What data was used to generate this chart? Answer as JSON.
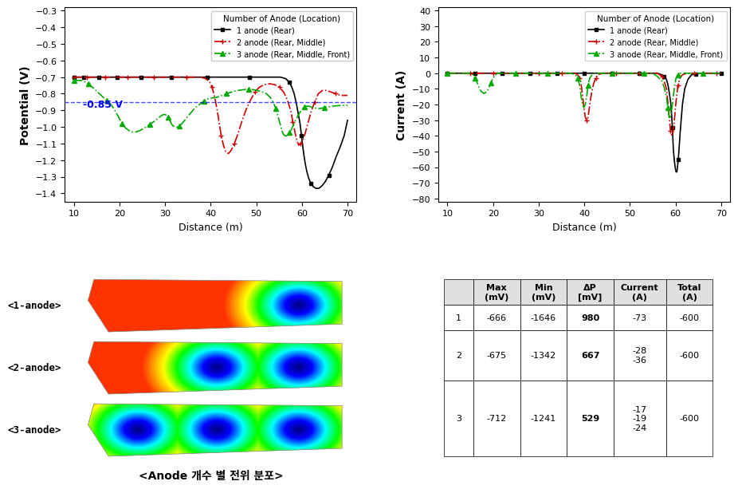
{
  "pot_title": "Potential (V)",
  "cur_title": "Current (A)",
  "xlabel": "Distance (m)",
  "legend_title": "Number of Anode (Location)",
  "legend_entries": [
    "1 anode (Rear)",
    "2 anode (Rear, Middle)",
    "3 anode (Rear, Middle, Front)"
  ],
  "line_colors": [
    "#000000",
    "#cc0000",
    "#00aa00"
  ],
  "pot_ylim": [
    -1.45,
    -0.28
  ],
  "pot_yticks": [
    -1.4,
    -1.3,
    -1.2,
    -1.1,
    -1.0,
    -0.9,
    -0.8,
    -0.7,
    -0.6,
    -0.5,
    -0.4,
    -0.3
  ],
  "cur_ylim": [
    -82,
    42
  ],
  "cur_yticks": [
    -80,
    -70,
    -60,
    -50,
    -40,
    -30,
    -20,
    -10,
    0,
    10,
    20,
    30,
    40
  ],
  "xlim": [
    8,
    72
  ],
  "xticks": [
    10,
    20,
    30,
    40,
    50,
    60,
    70
  ],
  "ref_line": -0.85,
  "ref_label": "-0.85 V",
  "table_headers": [
    "",
    "Max\n(mV)",
    "Min\n(mV)",
    "ΔP\n[mV]",
    "Current\n(A)",
    "Total\n(A)"
  ],
  "table_rows": [
    [
      "1",
      "-666",
      "-1646",
      "980",
      "-73",
      "-600"
    ],
    [
      "2",
      "-675",
      "-1342",
      "667",
      "-28\n-36",
      "-600"
    ],
    [
      "3",
      "-712",
      "-1241",
      "529",
      "-17\n-19\n-24",
      "-600"
    ]
  ],
  "anode_labels": [
    "<1-anode>",
    "<2-anode>",
    "<3-anode>"
  ],
  "bottom_label": "<Anode 개수 별 전위 분포>",
  "pot_1": [
    10.0,
    10.3,
    10.6,
    11.0,
    11.4,
    11.8,
    12.2,
    12.7,
    13.2,
    13.7,
    14.2,
    14.8,
    15.4,
    16.0,
    16.6,
    17.3,
    18.0,
    18.7,
    19.5,
    20.3,
    21.1,
    22.0,
    22.9,
    23.8,
    24.8,
    25.8,
    26.8,
    27.9,
    29.0,
    30.1,
    31.3,
    32.5,
    33.8,
    35.1,
    36.4,
    37.8,
    39.2,
    40.7,
    42.2,
    43.7,
    45.3,
    46.9,
    48.5,
    50.2,
    51.9,
    53.6,
    55.3,
    56.5,
    57.2,
    57.8,
    58.3,
    58.8,
    59.2,
    59.6,
    59.9,
    60.2,
    60.5,
    60.8,
    61.1,
    61.5,
    62.0,
    62.5,
    63.1,
    63.7,
    64.4,
    65.1,
    65.9,
    66.7,
    67.5,
    68.4,
    69.3,
    70.0
  ],
  "pot_1_y": [
    -0.7,
    -0.7,
    -0.7,
    -0.7,
    -0.7,
    -0.7,
    -0.7,
    -0.7,
    -0.7,
    -0.7,
    -0.7,
    -0.7,
    -0.7,
    -0.7,
    -0.7,
    -0.7,
    -0.7,
    -0.7,
    -0.7,
    -0.7,
    -0.7,
    -0.7,
    -0.7,
    -0.7,
    -0.7,
    -0.7,
    -0.7,
    -0.7,
    -0.7,
    -0.7,
    -0.7,
    -0.7,
    -0.7,
    -0.7,
    -0.7,
    -0.7,
    -0.7,
    -0.7,
    -0.7,
    -0.7,
    -0.7,
    -0.7,
    -0.7,
    -0.7,
    -0.7,
    -0.7,
    -0.7,
    -0.71,
    -0.73,
    -0.76,
    -0.8,
    -0.86,
    -0.92,
    -0.98,
    -1.05,
    -1.12,
    -1.18,
    -1.23,
    -1.27,
    -1.31,
    -1.34,
    -1.36,
    -1.37,
    -1.37,
    -1.355,
    -1.33,
    -1.29,
    -1.24,
    -1.18,
    -1.12,
    -1.05,
    -0.96
  ],
  "pot_2": [
    10.0,
    10.5,
    11.0,
    11.6,
    12.2,
    12.9,
    13.6,
    14.3,
    15.1,
    15.9,
    16.8,
    17.7,
    18.6,
    19.6,
    20.6,
    21.7,
    22.8,
    23.9,
    25.1,
    26.3,
    27.6,
    28.9,
    30.3,
    31.7,
    33.2,
    34.7,
    36.2,
    37.8,
    39.0,
    39.8,
    40.3,
    40.7,
    41.1,
    41.5,
    41.9,
    42.3,
    42.8,
    43.3,
    43.9,
    44.5,
    45.2,
    46.0,
    46.8,
    47.7,
    48.7,
    49.7,
    50.7,
    51.8,
    52.9,
    54.0,
    55.1,
    56.0,
    56.7,
    57.2,
    57.7,
    58.0,
    58.4,
    58.7,
    59.0,
    59.3,
    59.7,
    60.2,
    60.7,
    61.3,
    62.0,
    62.8,
    63.6,
    64.5,
    65.4,
    66.4,
    67.4,
    68.5,
    69.5,
    70.0
  ],
  "pot_2_y": [
    -0.7,
    -0.7,
    -0.7,
    -0.7,
    -0.7,
    -0.7,
    -0.7,
    -0.7,
    -0.7,
    -0.7,
    -0.7,
    -0.7,
    -0.7,
    -0.7,
    -0.7,
    -0.7,
    -0.7,
    -0.7,
    -0.7,
    -0.7,
    -0.7,
    -0.7,
    -0.7,
    -0.7,
    -0.7,
    -0.7,
    -0.7,
    -0.7,
    -0.71,
    -0.73,
    -0.76,
    -0.8,
    -0.85,
    -0.91,
    -0.98,
    -1.05,
    -1.11,
    -1.15,
    -1.16,
    -1.14,
    -1.1,
    -1.04,
    -0.97,
    -0.9,
    -0.84,
    -0.79,
    -0.76,
    -0.745,
    -0.74,
    -0.745,
    -0.76,
    -0.79,
    -0.83,
    -0.87,
    -0.92,
    -0.97,
    -1.02,
    -1.06,
    -1.09,
    -1.11,
    -1.1,
    -1.08,
    -1.04,
    -0.98,
    -0.91,
    -0.85,
    -0.8,
    -0.78,
    -0.78,
    -0.79,
    -0.8,
    -0.81,
    -0.81,
    -0.81
  ],
  "pot_3": [
    10.0,
    10.3,
    10.7,
    11.1,
    11.6,
    12.1,
    12.6,
    13.2,
    13.8,
    14.5,
    15.2,
    16.0,
    16.8,
    17.0,
    17.3,
    17.6,
    18.0,
    18.4,
    18.9,
    19.4,
    20.0,
    20.6,
    21.3,
    22.0,
    22.8,
    23.7,
    24.6,
    25.6,
    26.6,
    27.7,
    28.8,
    29.3,
    29.7,
    30.0,
    30.3,
    30.6,
    30.9,
    31.2,
    31.5,
    31.8,
    32.2,
    32.6,
    33.1,
    33.7,
    34.3,
    35.0,
    35.8,
    36.6,
    37.5,
    38.5,
    39.5,
    40.5,
    41.5,
    42.0,
    42.5,
    43.0,
    43.5,
    44.0,
    44.6,
    45.2,
    45.9,
    46.6,
    47.4,
    48.3,
    49.2,
    50.2,
    51.2,
    52.2,
    53.0,
    53.7,
    54.3,
    54.8,
    55.3,
    55.7,
    56.1,
    56.5,
    56.9,
    57.3,
    57.7,
    58.1,
    58.5,
    59.0,
    59.5,
    60.0,
    60.5,
    61.0,
    61.5,
    62.1,
    62.7,
    63.4,
    64.2,
    65.0,
    65.9,
    66.8,
    67.8,
    68.8,
    69.8,
    70.0
  ],
  "pot_3_y": [
    -0.72,
    -0.72,
    -0.72,
    -0.72,
    -0.72,
    -0.725,
    -0.73,
    -0.74,
    -0.755,
    -0.77,
    -0.79,
    -0.81,
    -0.83,
    -0.835,
    -0.84,
    -0.85,
    -0.86,
    -0.875,
    -0.895,
    -0.92,
    -0.95,
    -0.98,
    -1.005,
    -1.02,
    -1.03,
    -1.03,
    -1.02,
    -1.005,
    -0.985,
    -0.965,
    -0.94,
    -0.93,
    -0.925,
    -0.925,
    -0.93,
    -0.94,
    -0.955,
    -0.97,
    -0.985,
    -0.995,
    -1.0,
    -1.0,
    -0.995,
    -0.98,
    -0.96,
    -0.935,
    -0.91,
    -0.885,
    -0.865,
    -0.845,
    -0.83,
    -0.825,
    -0.82,
    -0.815,
    -0.81,
    -0.805,
    -0.8,
    -0.795,
    -0.79,
    -0.785,
    -0.78,
    -0.778,
    -0.775,
    -0.775,
    -0.775,
    -0.78,
    -0.788,
    -0.8,
    -0.82,
    -0.85,
    -0.89,
    -0.94,
    -0.99,
    -1.03,
    -1.05,
    -1.055,
    -1.05,
    -1.035,
    -1.015,
    -0.99,
    -0.965,
    -0.94,
    -0.915,
    -0.895,
    -0.88,
    -0.875,
    -0.875,
    -0.88,
    -0.885,
    -0.89,
    -0.888,
    -0.882,
    -0.878,
    -0.875,
    -0.872,
    -0.87,
    -0.87,
    -0.87
  ],
  "cur_1": [
    10.0,
    11.0,
    12.0,
    13.0,
    14.0,
    15.0,
    16.0,
    17.0,
    18.0,
    19.0,
    20.0,
    21.0,
    22.0,
    23.0,
    24.0,
    25.0,
    26.0,
    27.0,
    28.0,
    29.0,
    30.0,
    31.0,
    32.0,
    33.0,
    34.0,
    35.0,
    36.0,
    37.0,
    38.0,
    39.0,
    40.0,
    41.0,
    42.0,
    43.0,
    44.0,
    45.0,
    46.0,
    47.0,
    48.0,
    49.0,
    50.0,
    51.0,
    52.0,
    53.0,
    54.0,
    55.0,
    56.0,
    57.0,
    57.5,
    58.0,
    58.3,
    58.6,
    58.9,
    59.1,
    59.3,
    59.5,
    59.7,
    59.9,
    60.1,
    60.3,
    60.6,
    61.0,
    61.5,
    62.0,
    62.7,
    63.5,
    64.5,
    65.5,
    66.5,
    67.5,
    68.5,
    69.5,
    70.0
  ],
  "cur_1_y": [
    0.0,
    0.0,
    0.0,
    0.0,
    0.0,
    0.0,
    0.0,
    0.0,
    0.0,
    0.0,
    0.0,
    0.0,
    0.0,
    0.0,
    0.0,
    0.0,
    0.0,
    0.0,
    0.0,
    0.0,
    0.0,
    0.0,
    0.0,
    0.0,
    0.0,
    0.0,
    0.0,
    0.0,
    0.0,
    0.0,
    0.0,
    0.0,
    0.0,
    0.0,
    0.0,
    0.0,
    0.0,
    0.0,
    0.0,
    0.0,
    0.0,
    0.0,
    0.0,
    0.0,
    0.0,
    0.0,
    0.0,
    -1.0,
    -2.0,
    -4.0,
    -7.0,
    -12.0,
    -18.0,
    -25.0,
    -35.0,
    -48.0,
    -55.0,
    -60.0,
    -63.0,
    -63.0,
    -55.0,
    -38.0,
    -20.0,
    -10.0,
    -4.0,
    -1.0,
    -0.5,
    0.0,
    0.0,
    0.0,
    0.0,
    0.0,
    0.0
  ],
  "cur_2": [
    10.0,
    11.0,
    12.0,
    13.0,
    14.0,
    15.0,
    16.0,
    17.0,
    18.0,
    19.0,
    20.0,
    21.0,
    22.0,
    23.0,
    24.0,
    25.0,
    26.0,
    27.0,
    28.0,
    29.0,
    30.0,
    31.0,
    32.0,
    33.0,
    34.0,
    35.0,
    36.0,
    37.0,
    38.0,
    38.5,
    39.0,
    39.3,
    39.6,
    39.9,
    40.2,
    40.5,
    40.8,
    41.1,
    41.5,
    42.0,
    42.5,
    43.0,
    44.0,
    45.0,
    46.0,
    47.0,
    48.0,
    49.0,
    50.0,
    51.0,
    52.0,
    53.0,
    54.0,
    55.0,
    56.0,
    57.0,
    57.5,
    58.0,
    58.3,
    58.6,
    58.9,
    59.2,
    59.5,
    59.8,
    60.1,
    60.5,
    61.0,
    61.5,
    62.0,
    63.0,
    64.0,
    65.0,
    66.0,
    67.0,
    68.0,
    69.0,
    70.0
  ],
  "cur_2_y": [
    0.0,
    0.0,
    0.0,
    0.0,
    0.0,
    0.0,
    0.0,
    0.0,
    0.0,
    0.0,
    0.0,
    0.0,
    0.0,
    0.0,
    0.0,
    0.0,
    0.0,
    0.0,
    0.0,
    0.0,
    0.0,
    0.0,
    0.0,
    0.0,
    0.0,
    0.0,
    0.0,
    0.0,
    0.0,
    -1.0,
    -3.0,
    -7.0,
    -14.0,
    -22.0,
    -28.0,
    -30.0,
    -28.0,
    -22.0,
    -14.0,
    -7.0,
    -3.0,
    -1.0,
    0.0,
    0.0,
    0.0,
    0.0,
    0.0,
    0.0,
    0.0,
    0.0,
    0.0,
    0.0,
    0.0,
    0.0,
    0.0,
    -2.0,
    -5.0,
    -10.0,
    -18.0,
    -28.0,
    -37.0,
    -40.0,
    -37.0,
    -28.0,
    -18.0,
    -8.0,
    -3.0,
    -1.0,
    -0.5,
    0.0,
    0.0,
    0.0,
    0.0,
    0.0,
    0.0,
    0.0,
    0.0
  ],
  "cur_3": [
    10.0,
    11.0,
    12.0,
    13.0,
    14.0,
    15.0,
    15.5,
    16.0,
    16.5,
    17.0,
    17.5,
    18.0,
    18.5,
    19.0,
    19.5,
    20.0,
    20.5,
    21.0,
    22.0,
    23.0,
    24.0,
    25.0,
    26.0,
    27.0,
    28.0,
    29.0,
    30.0,
    31.0,
    32.0,
    33.0,
    34.0,
    35.0,
    36.0,
    37.0,
    38.0,
    38.5,
    39.0,
    39.3,
    39.6,
    39.9,
    40.2,
    40.5,
    40.8,
    41.2,
    41.7,
    42.3,
    43.0,
    44.0,
    45.0,
    46.0,
    47.0,
    48.0,
    49.0,
    50.0,
    51.0,
    52.0,
    53.0,
    54.0,
    55.0,
    56.0,
    57.0,
    57.5,
    58.0,
    58.3,
    58.6,
    58.9,
    59.2,
    59.5,
    59.8,
    60.1,
    60.5,
    61.0,
    61.5,
    62.0,
    63.0,
    64.0,
    65.0,
    66.0,
    67.0,
    68.0,
    69.0,
    70.0
  ],
  "cur_3_y": [
    0.0,
    0.0,
    0.0,
    0.0,
    0.0,
    0.0,
    -1.0,
    -3.0,
    -6.0,
    -10.0,
    -12.0,
    -13.0,
    -12.0,
    -10.0,
    -6.0,
    -3.0,
    -1.0,
    0.0,
    0.0,
    0.0,
    0.0,
    0.0,
    0.0,
    0.0,
    0.0,
    0.0,
    0.0,
    0.0,
    0.0,
    0.0,
    0.0,
    0.0,
    0.0,
    0.0,
    -1.0,
    -3.0,
    -8.0,
    -15.0,
    -20.0,
    -22.0,
    -20.0,
    -15.0,
    -8.0,
    -3.0,
    -1.0,
    0.0,
    0.0,
    0.0,
    0.0,
    0.0,
    0.0,
    0.0,
    0.0,
    0.0,
    0.0,
    0.0,
    0.0,
    0.0,
    0.0,
    -2.0,
    -5.0,
    -9.0,
    -15.0,
    -22.0,
    -28.0,
    -28.0,
    -22.0,
    -15.0,
    -8.0,
    -3.0,
    -1.0,
    0.0,
    0.0,
    0.0,
    0.0,
    0.0,
    0.0,
    0.0,
    0.0,
    0.0,
    0.0,
    0.0
  ]
}
